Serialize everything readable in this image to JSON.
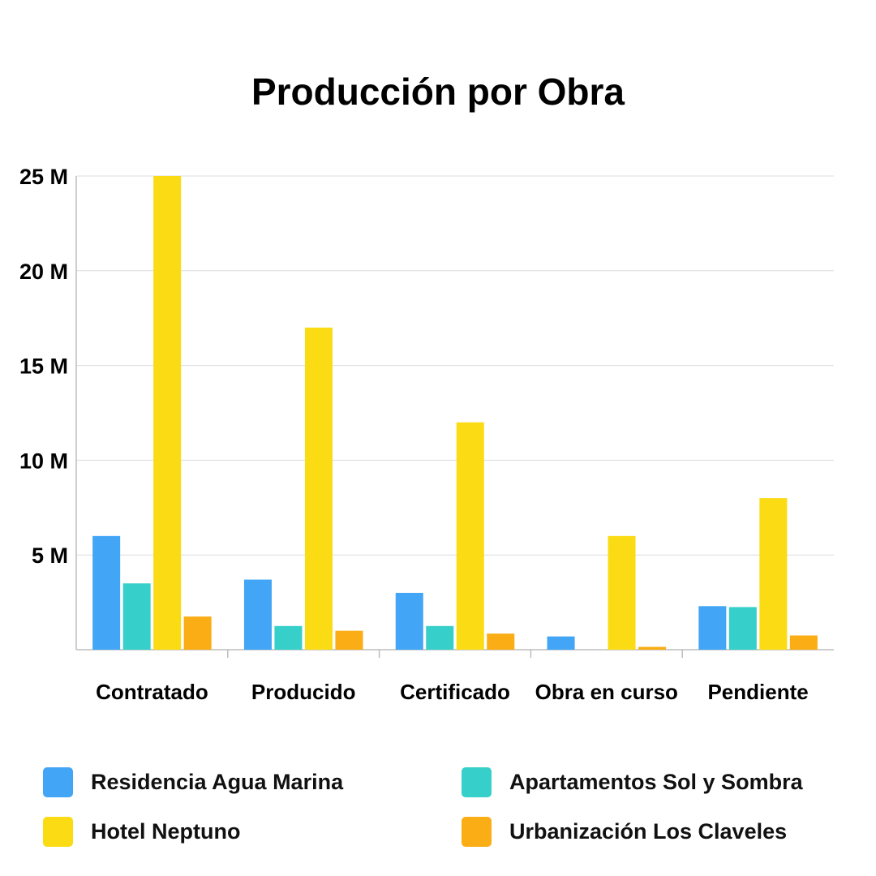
{
  "chart_data": {
    "type": "bar",
    "title": "Producción por Obra",
    "categories": [
      "Contratado",
      "Producido",
      "Certificado",
      "Obra en curso",
      "Pendiente"
    ],
    "y_ticks": [
      {
        "value": 5000000,
        "label": "5 M"
      },
      {
        "value": 10000000,
        "label": "10 M"
      },
      {
        "value": 15000000,
        "label": "15 M"
      },
      {
        "value": 20000000,
        "label": "20 M"
      },
      {
        "value": 25000000,
        "label": "25 M"
      }
    ],
    "ylim": [
      0,
      25000000
    ],
    "grid": true,
    "legend_position": "bottom",
    "series": [
      {
        "name": "Residencia Agua Marina",
        "color": "#42A5F5",
        "values": [
          6000000,
          3700000,
          3000000,
          700000,
          2300000
        ]
      },
      {
        "name": "Apartamentos Sol y Sombra",
        "color": "#36CFC9",
        "values": [
          3500000,
          1250000,
          1250000,
          0,
          2250000
        ]
      },
      {
        "name": "Hotel Neptuno",
        "color": "#FADB14",
        "values": [
          25000000,
          17000000,
          12000000,
          6000000,
          8000000
        ]
      },
      {
        "name": "Urbanización Los Claveles",
        "color": "#FAAD14",
        "values": [
          1750000,
          1000000,
          850000,
          150000,
          750000
        ]
      }
    ]
  }
}
